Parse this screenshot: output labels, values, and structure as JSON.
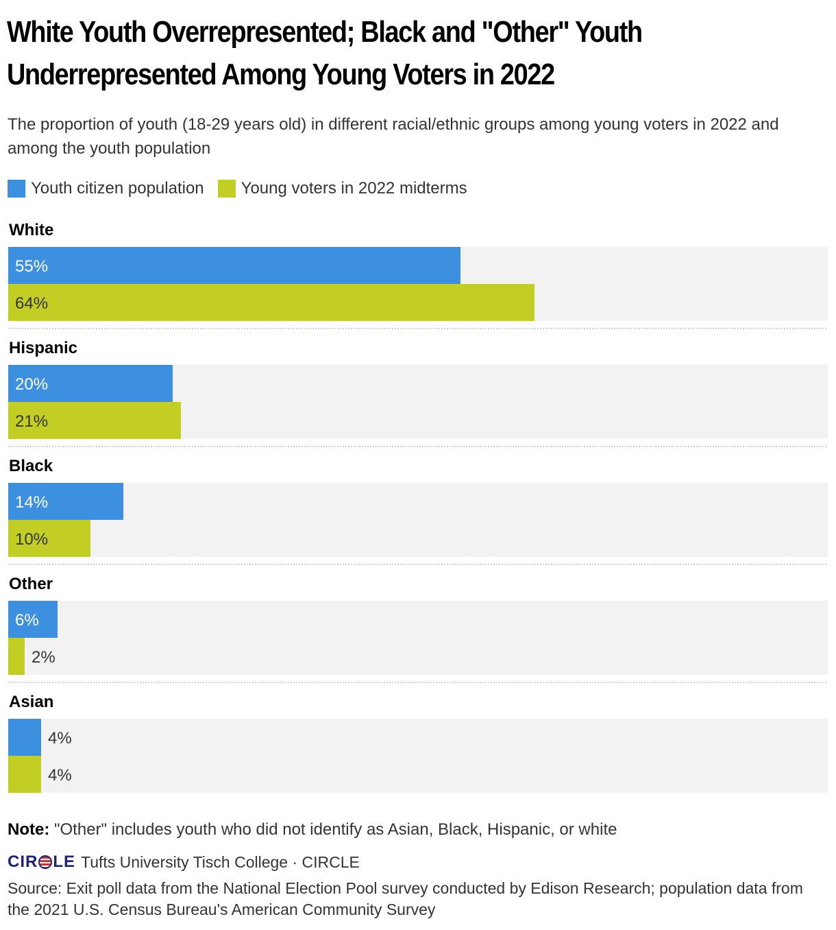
{
  "title_line1": "White Youth Overrepresented; Black and \"Other\" Youth",
  "title_line2": "Underrepresented Among Young Voters in 2022",
  "subtitle": "The proportion of youth (18-29 years old) in different racial/ethnic groups among young voters in 2022 and among the youth population",
  "note_label": "Note:",
  "note_text": " \"Other\" includes youth who did not identify as Asian, Black, Hispanic, or white",
  "logo_left": "CIR",
  "logo_right": "LE",
  "credit": "Tufts University Tisch College · CIRCLE",
  "source": "Source: Exit poll data from the National Election Pool survey conducted by Edison Research; population data from the 2021 U.S. Census Bureau's American Community Survey",
  "colors": {
    "population": "#3d8fdf",
    "voters": "#c2ce24",
    "track": "#f2f2f2",
    "divider": "#bfbfbf"
  },
  "chart_data": {
    "type": "bar",
    "orientation": "horizontal",
    "categories": [
      "White",
      "Hispanic",
      "Black",
      "Other",
      "Asian"
    ],
    "series": [
      {
        "name": "Youth citizen population",
        "values": [
          55,
          20,
          14,
          6,
          4
        ],
        "labels": [
          "55%",
          "20%",
          "14%",
          "6%",
          "4%"
        ]
      },
      {
        "name": "Young voters in 2022 midterms",
        "values": [
          64,
          21,
          10,
          2,
          4
        ],
        "labels": [
          "64%",
          "21%",
          "10%",
          "2%",
          "4%"
        ]
      }
    ],
    "xlim": [
      0,
      100
    ],
    "unit": "%",
    "grid": false,
    "legend_position": "top-left"
  }
}
